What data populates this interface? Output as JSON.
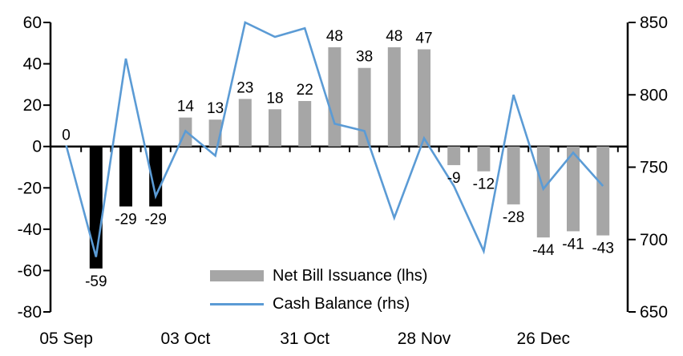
{
  "chart_data": {
    "type": "combo-bar-line",
    "n_points": 19,
    "x_tick_labels": [
      "05 Sep",
      "03 Oct",
      "31 Oct",
      "28 Nov",
      "26 Dec"
    ],
    "x_tick_label_bar_indices": [
      0,
      4,
      8,
      12,
      16
    ],
    "series": [
      {
        "name": "Net Bill Issuance (lhs)",
        "type": "bar",
        "axis": "left",
        "values": [
          0,
          -59,
          -29,
          -29,
          14,
          13,
          23,
          18,
          22,
          48,
          38,
          48,
          47,
          -9,
          -12,
          -28,
          -44,
          -41,
          -43
        ],
        "data_labels": [
          "0",
          "-59",
          "-29",
          "-29",
          "14",
          "13",
          "23",
          "18",
          "22",
          "48",
          "38",
          "48",
          "47",
          "-9",
          "-12",
          "-28",
          "-44",
          "-41",
          "-43"
        ],
        "bar_colors": [
          "gray",
          "black",
          "black",
          "black",
          "gray",
          "gray",
          "gray",
          "gray",
          "gray",
          "gray",
          "gray",
          "gray",
          "gray",
          "gray",
          "gray",
          "gray",
          "gray",
          "gray",
          "gray"
        ]
      },
      {
        "name": "Cash Balance (rhs)",
        "type": "line",
        "axis": "right",
        "values": [
          765,
          688,
          825,
          730,
          775,
          758,
          850,
          840,
          846,
          780,
          775,
          715,
          770,
          737,
          692,
          800,
          735,
          760,
          737
        ]
      }
    ],
    "left_axis": {
      "min": -80,
      "max": 60,
      "step": 20,
      "ticks": [
        60,
        40,
        20,
        0,
        -20,
        -40,
        -60,
        -80
      ]
    },
    "right_axis": {
      "min": 650,
      "max": 850,
      "step": 50,
      "ticks": [
        850,
        800,
        750,
        700,
        650
      ]
    },
    "grid": "off",
    "legend_position": "inside-bottom-center"
  },
  "colors": {
    "bar_gray": "#a6a6a6",
    "bar_black": "#000000",
    "line_blue": "#5b9bd5",
    "axis": "#000000",
    "text": "#000000",
    "background": "#ffffff"
  },
  "legend": {
    "bar_label": "Net Bill Issuance (lhs)",
    "line_label": "Cash Balance (rhs)"
  }
}
